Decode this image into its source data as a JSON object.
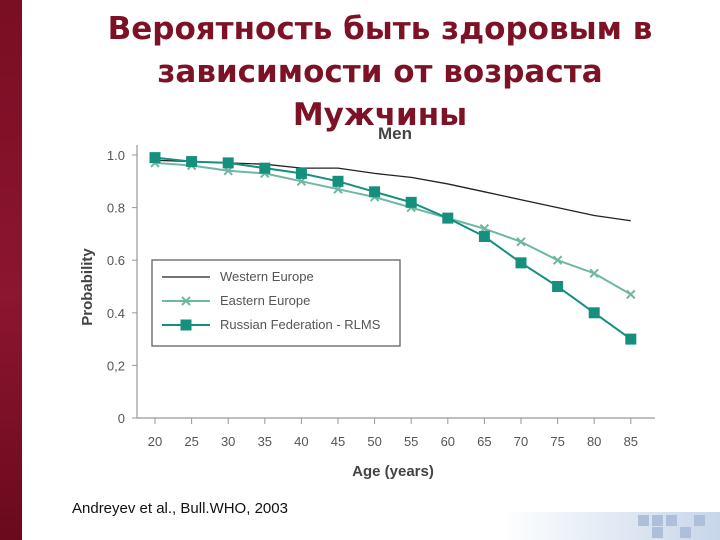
{
  "slide": {
    "title_lines": [
      "Вероятность быть здоровым в",
      "зависимости от возраста",
      "Мужчины"
    ],
    "citation": "Andreyev et al., Bull.WHO, 2003"
  },
  "chart_data": {
    "type": "line",
    "title": "Men",
    "xlabel": "Age (years)",
    "ylabel": "Probability",
    "x": [
      20,
      25,
      30,
      35,
      40,
      45,
      50,
      55,
      60,
      65,
      70,
      75,
      80,
      85
    ],
    "ylim": [
      0,
      1.0
    ],
    "y_ticks": [
      "0",
      "0,2",
      "0.4",
      "0.6",
      "0.8",
      "1.0"
    ],
    "y_tick_values": [
      0,
      0.2,
      0.4,
      0.6,
      0.8,
      1.0
    ],
    "grid": false,
    "legend_position": "center-left",
    "series": [
      {
        "name": "Western Europe",
        "marker": "none",
        "color": "#222222",
        "values": [
          0.98,
          0.975,
          0.97,
          0.965,
          0.95,
          0.95,
          0.93,
          0.915,
          0.89,
          0.86,
          0.83,
          0.8,
          0.77,
          0.75
        ]
      },
      {
        "name": "Eastern Europe",
        "marker": "x",
        "color": "#6fb7a3",
        "values": [
          0.97,
          0.96,
          0.94,
          0.93,
          0.9,
          0.87,
          0.84,
          0.8,
          0.76,
          0.72,
          0.67,
          0.6,
          0.55,
          0.47
        ]
      },
      {
        "name": "Russian Federation - RLMS",
        "marker": "square",
        "color": "#14907d",
        "values": [
          0.99,
          0.975,
          0.97,
          0.95,
          0.93,
          0.9,
          0.86,
          0.82,
          0.76,
          0.69,
          0.59,
          0.5,
          0.4,
          0.3
        ]
      }
    ]
  }
}
